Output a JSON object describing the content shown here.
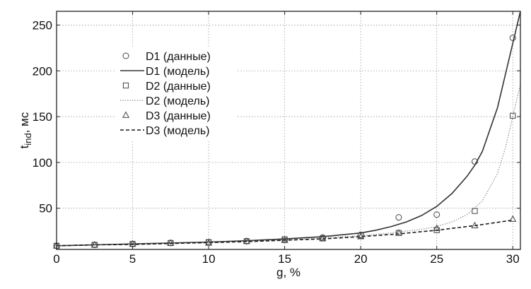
{
  "chart_data": {
    "type": "line",
    "xlabel": "g, %",
    "ylabel_main": "t",
    "ylabel_sub": "ind",
    "ylabel_unit": ", мс",
    "xlim": [
      0,
      30.5
    ],
    "ylim": [
      5,
      265
    ],
    "xticks": [
      0,
      5,
      10,
      15,
      20,
      25,
      30
    ],
    "yticks": [
      50,
      100,
      150,
      200,
      250
    ],
    "grid": true,
    "legend_position": "upper-left",
    "series": [
      {
        "name": "D1 (данные)",
        "kind": "markers",
        "marker": "circle",
        "x": [
          0,
          2.5,
          5,
          7.5,
          10,
          12.5,
          15,
          17.5,
          20,
          22.5,
          25,
          27.5,
          30
        ],
        "y": [
          9,
          10,
          11,
          12,
          13,
          14,
          16,
          18,
          21,
          40,
          43,
          101,
          236
        ]
      },
      {
        "name": "D1 (модель)",
        "kind": "line",
        "dash": "solid",
        "x": [
          0,
          2.5,
          5,
          7.5,
          10,
          12.5,
          15,
          17.5,
          20,
          21,
          22,
          23,
          24,
          25,
          26,
          27,
          27.5,
          28,
          29,
          30,
          30.5
        ],
        "y": [
          9,
          10,
          11,
          12,
          13,
          14.5,
          16.5,
          19,
          23,
          26,
          30,
          35,
          42,
          52,
          66,
          85,
          97,
          112,
          160,
          230,
          265
        ]
      },
      {
        "name": "D2 (данные)",
        "kind": "markers",
        "marker": "square",
        "x": [
          0,
          2.5,
          5,
          7.5,
          10,
          12.5,
          15,
          17.5,
          20,
          22.5,
          25,
          27.5,
          30
        ],
        "y": [
          9,
          10,
          11,
          12,
          13,
          14,
          16,
          17,
          20,
          23,
          26,
          47,
          151
        ]
      },
      {
        "name": "D2 (модель)",
        "kind": "line",
        "dash": "dotted",
        "x": [
          0,
          2.5,
          5,
          7.5,
          10,
          12.5,
          15,
          17.5,
          20,
          22,
          24,
          25,
          26,
          27,
          28,
          29,
          29.5,
          30,
          30.5
        ],
        "y": [
          9,
          10,
          11,
          12,
          13,
          14,
          15.5,
          17.5,
          20,
          23,
          27,
          30,
          35,
          43,
          58,
          88,
          115,
          150,
          185
        ]
      },
      {
        "name": "D3 (данные)",
        "kind": "markers",
        "marker": "triangle",
        "x": [
          0,
          2.5,
          5,
          7.5,
          10,
          12.5,
          15,
          17.5,
          20,
          22.5,
          25,
          27.5,
          30
        ],
        "y": [
          9,
          10,
          11,
          12,
          12,
          14,
          15,
          17,
          19,
          23,
          28,
          31,
          38
        ]
      },
      {
        "name": "D3 (модель)",
        "kind": "line",
        "dash": "dashed",
        "x": [
          0,
          2.5,
          5,
          7.5,
          10,
          12.5,
          15,
          17.5,
          20,
          22.5,
          25,
          27.5,
          30
        ],
        "y": [
          9,
          10,
          10.5,
          11.5,
          12.5,
          13.5,
          15,
          16.5,
          19,
          22,
          26,
          31,
          37
        ]
      }
    ]
  }
}
